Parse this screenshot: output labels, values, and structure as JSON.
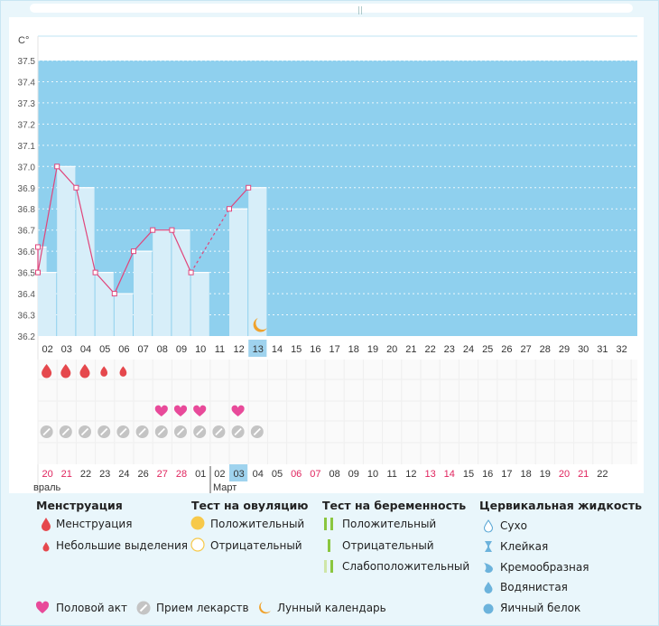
{
  "chart_data": {
    "type": "line",
    "unit_label": "C°",
    "y_ticks": [
      "36.2",
      "36.3",
      "36.4",
      "36.5",
      "36.6",
      "36.7",
      "36.8",
      "36.9",
      "37.0",
      "37.1",
      "37.2",
      "37.3",
      "37.4",
      "37.5"
    ],
    "ylim": [
      36.2,
      37.5
    ],
    "cycle_days": [
      "02",
      "03",
      "04",
      "05",
      "06",
      "07",
      "08",
      "09",
      "10",
      "11",
      "12",
      "13",
      "14",
      "15",
      "16",
      "17",
      "18",
      "19",
      "20",
      "21",
      "22",
      "23",
      "24",
      "25",
      "26",
      "27",
      "28",
      "29",
      "30",
      "31",
      "32"
    ],
    "current_cycle_day": "13",
    "temperature_points": [
      {
        "day": "01",
        "value": 36.62
      },
      {
        "day": "02",
        "value": 36.5
      },
      {
        "day": "03",
        "value": 37.0
      },
      {
        "day": "04",
        "value": 36.9
      },
      {
        "day": "05",
        "value": 36.5
      },
      {
        "day": "06",
        "value": 36.4
      },
      {
        "day": "07",
        "value": 36.6
      },
      {
        "day": "08",
        "value": 36.7
      },
      {
        "day": "09",
        "value": 36.7
      },
      {
        "day": "10",
        "value": 36.5
      },
      {
        "day": "12",
        "value": 36.8
      },
      {
        "day": "13",
        "value": 36.9
      }
    ],
    "dashed_segment": [
      "10",
      "12"
    ],
    "menstruation": [
      {
        "day": "02",
        "type": "heavy"
      },
      {
        "day": "03",
        "type": "heavy"
      },
      {
        "day": "04",
        "type": "heavy"
      },
      {
        "day": "05",
        "type": "light"
      },
      {
        "day": "06",
        "type": "light"
      }
    ],
    "intercourse_days": [
      "08",
      "09",
      "10",
      "12"
    ],
    "medication_days": [
      "02",
      "03",
      "04",
      "05",
      "06",
      "07",
      "08",
      "09",
      "10",
      "11",
      "12",
      "13"
    ],
    "moon_day": "13",
    "calendar_dates": [
      {
        "d": "20",
        "weekend": true
      },
      {
        "d": "21",
        "weekend": true
      },
      {
        "d": "22",
        "weekend": false
      },
      {
        "d": "23",
        "weekend": false
      },
      {
        "d": "24",
        "weekend": false
      },
      {
        "d": "26",
        "weekend": false
      },
      {
        "d": "27",
        "weekend": true
      },
      {
        "d": "28",
        "weekend": true
      },
      {
        "d": "01",
        "weekend": false
      },
      {
        "d": "02",
        "weekend": false
      },
      {
        "d": "03",
        "weekend": false,
        "current": true
      },
      {
        "d": "04",
        "weekend": false
      },
      {
        "d": "05",
        "weekend": false
      },
      {
        "d": "06",
        "weekend": true
      },
      {
        "d": "07",
        "weekend": true
      },
      {
        "d": "08",
        "weekend": false
      },
      {
        "d": "09",
        "weekend": false
      },
      {
        "d": "10",
        "weekend": false
      },
      {
        "d": "11",
        "weekend": false
      },
      {
        "d": "12",
        "weekend": false
      },
      {
        "d": "13",
        "weekend": true
      },
      {
        "d": "14",
        "weekend": true
      },
      {
        "d": "15",
        "weekend": false
      },
      {
        "d": "16",
        "weekend": false
      },
      {
        "d": "17",
        "weekend": false
      },
      {
        "d": "18",
        "weekend": false
      },
      {
        "d": "19",
        "weekend": false
      },
      {
        "d": "20",
        "weekend": true
      },
      {
        "d": "21",
        "weekend": true
      },
      {
        "d": "22",
        "weekend": false
      }
    ],
    "month_labels": [
      "враль",
      "Март"
    ],
    "colors": {
      "plot_bg": "#8fd0ee",
      "bar_fill": "#d7eef9",
      "line": "#e0457b",
      "weekend_text": "#e0245e",
      "highlight_box": "#9fd3ee",
      "drop": "#e5484d",
      "heart": "#e84a9a",
      "pill": "#c4c4c4",
      "moon": "#f0a22c"
    }
  },
  "legend": {
    "menstruation": {
      "title": "Менструация",
      "items": [
        "Менструация",
        "Небольшие выделения"
      ]
    },
    "ovulation_test": {
      "title": "Тест на овуляцию",
      "items": [
        "Положительный",
        "Отрицательный"
      ]
    },
    "pregnancy_test": {
      "title": "Тест на беременность",
      "items": [
        "Положительный",
        "Отрицательный",
        "Слабоположительный"
      ]
    },
    "cervical_fluid": {
      "title": "Цервикальная жидкость",
      "items": [
        "Сухо",
        "Клейкая",
        "Кремообразная",
        "Водянистая",
        "Яичный белок"
      ]
    },
    "bottom": [
      "Половой акт",
      "Прием лекарств",
      "Лунный календарь"
    ]
  }
}
